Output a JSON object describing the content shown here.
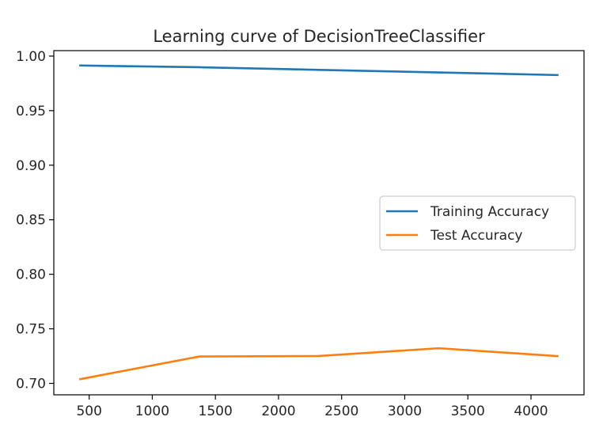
{
  "chart_data": {
    "type": "line",
    "title": "Learning curve of DecisionTreeClassifier",
    "xlabel": "",
    "ylabel": "",
    "xlim": [
      220,
      4420
    ],
    "ylim": [
      0.6895,
      1.005
    ],
    "xticks": [
      500,
      1000,
      1500,
      2000,
      2500,
      3000,
      3500,
      4000
    ],
    "yticks": [
      0.7,
      0.75,
      0.8,
      0.85,
      0.9,
      0.95,
      1.0
    ],
    "xtick_labels": [
      "500",
      "1000",
      "1500",
      "2000",
      "2500",
      "3000",
      "3500",
      "4000"
    ],
    "ytick_labels": [
      "0.70",
      "0.75",
      "0.80",
      "0.85",
      "0.90",
      "0.95",
      "1.00"
    ],
    "x": [
      422,
      1371,
      2320,
      3269,
      4218
    ],
    "series": [
      {
        "name": "Training Accuracy",
        "color": "#1f77b4",
        "values": [
          0.9914,
          0.9898,
          0.9874,
          0.985,
          0.9826
        ]
      },
      {
        "name": "Test Accuracy",
        "color": "#ff7f0e",
        "values": [
          0.7037,
          0.7246,
          0.7251,
          0.7322,
          0.7249
        ]
      }
    ],
    "grid": false,
    "legend_position": "center-right"
  }
}
